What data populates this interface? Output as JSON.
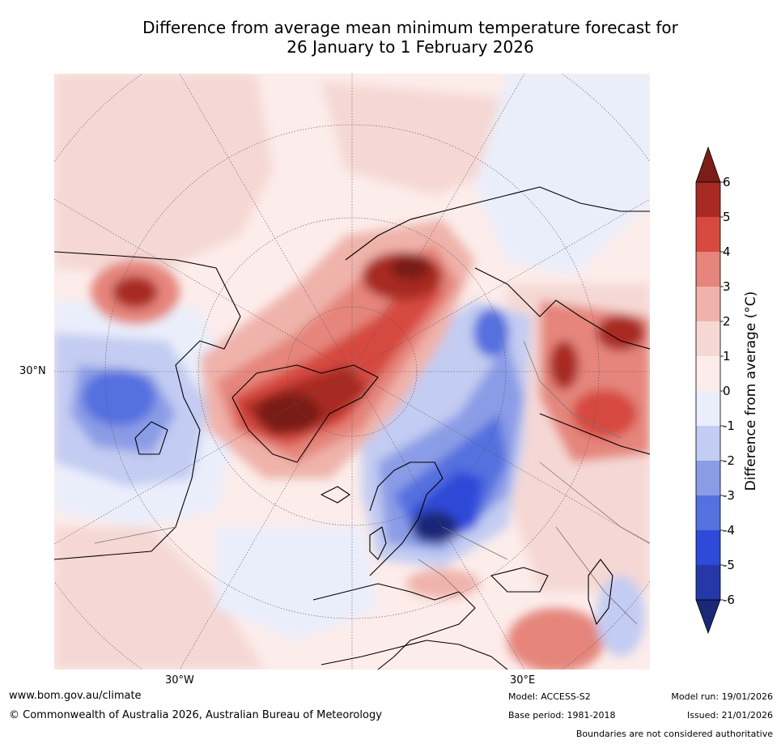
{
  "title": {
    "line1": "Difference from average mean minimum temperature forecast for",
    "line2": "26 January to 1 February 2026"
  },
  "map": {
    "projection": "north-polar-stereographic",
    "lat_labels": [
      "30°N"
    ],
    "lon_labels": [
      "30°W",
      "30°E"
    ]
  },
  "colorbar": {
    "title": "Difference from average (°C)",
    "tick_labels": [
      "6",
      "5",
      "4",
      "3",
      "2",
      "1",
      "0",
      "-1",
      "-2",
      "-3",
      "-4",
      "-5",
      "-6"
    ],
    "colors": [
      "#7a1e17",
      "#a82a24",
      "#d64a3f",
      "#e5857b",
      "#efb3ab",
      "#f5d8d4",
      "#fcecea",
      "#eaeefb",
      "#c3ccf2",
      "#8b9ce6",
      "#5570df",
      "#2d4ad8",
      "#2638a8",
      "#1b2878"
    ]
  },
  "footer": {
    "website": "www.bom.gov.au/climate",
    "copyright": "© Commonwealth of Australia 2026, Australian Bureau of Meteorology",
    "model": "Model: ACCESS-S2",
    "base_period": "Base period: 1981-2018",
    "model_run": "Model run: 19/01/2026",
    "issued": "Issued: 21/01/2026",
    "disclaimer": "Boundaries are not considered authoritative"
  }
}
